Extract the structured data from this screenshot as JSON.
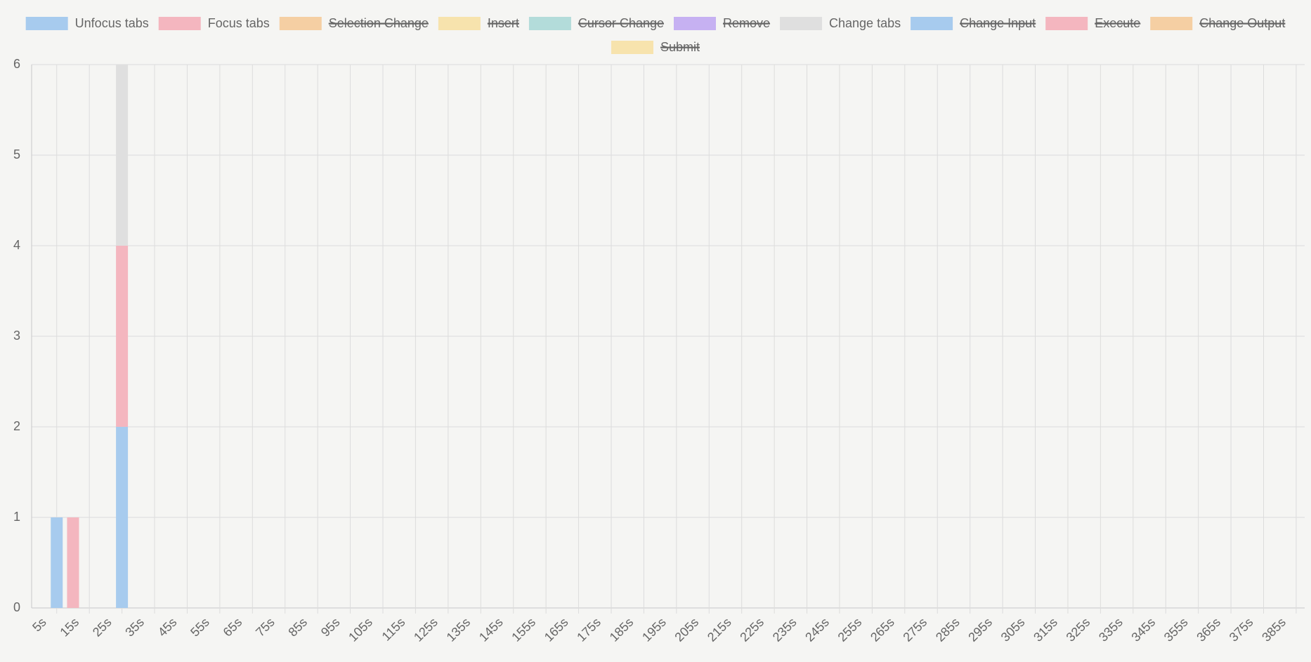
{
  "chart_data": {
    "type": "bar",
    "stacked": true,
    "x": [
      10,
      15,
      30
    ],
    "series": [
      {
        "name": "Unfocus tabs",
        "color": "#a7cbee",
        "hidden": false,
        "values": [
          1,
          null,
          2
        ]
      },
      {
        "name": "Focus tabs",
        "color": "#f4b6bf",
        "hidden": false,
        "values": [
          null,
          1,
          2
        ]
      },
      {
        "name": "Selection Change",
        "color": "#f5cfa3",
        "hidden": true,
        "values": [
          null,
          null,
          null
        ]
      },
      {
        "name": "Insert",
        "color": "#f7e3ad",
        "hidden": true,
        "values": [
          null,
          null,
          null
        ]
      },
      {
        "name": "Cursor Change",
        "color": "#b3dcda",
        "hidden": true,
        "values": [
          null,
          null,
          null
        ]
      },
      {
        "name": "Remove",
        "color": "#c6b1f2",
        "hidden": true,
        "values": [
          null,
          null,
          null
        ]
      },
      {
        "name": "Change tabs",
        "color": "#dfdfdf",
        "hidden": false,
        "values": [
          null,
          null,
          2
        ]
      },
      {
        "name": "Change Input",
        "color": "#a7cbee",
        "hidden": true,
        "values": [
          null,
          null,
          null
        ]
      },
      {
        "name": "Execute",
        "color": "#f4b6bf",
        "hidden": true,
        "values": [
          null,
          null,
          null
        ]
      },
      {
        "name": "Change Output",
        "color": "#f5cfa3",
        "hidden": true,
        "values": [
          null,
          null,
          null
        ]
      },
      {
        "name": "Submit",
        "color": "#f7e3ad",
        "hidden": true,
        "values": [
          null,
          null,
          null
        ]
      }
    ],
    "xlim": [
      2.3,
      392.6
    ],
    "xticks": [
      {
        "value": 5,
        "label": "5s"
      },
      {
        "value": 15,
        "label": "15s"
      },
      {
        "value": 25,
        "label": "25s"
      },
      {
        "value": 35,
        "label": "35s"
      },
      {
        "value": 45,
        "label": "45s"
      },
      {
        "value": 55,
        "label": "55s"
      },
      {
        "value": 65,
        "label": "65s"
      },
      {
        "value": 75,
        "label": "75s"
      },
      {
        "value": 85,
        "label": "85s"
      },
      {
        "value": 95,
        "label": "95s"
      },
      {
        "value": 105,
        "label": "105s"
      },
      {
        "value": 115,
        "label": "115s"
      },
      {
        "value": 125,
        "label": "125s"
      },
      {
        "value": 135,
        "label": "135s"
      },
      {
        "value": 145,
        "label": "145s"
      },
      {
        "value": 155,
        "label": "155s"
      },
      {
        "value": 165,
        "label": "165s"
      },
      {
        "value": 175,
        "label": "175s"
      },
      {
        "value": 185,
        "label": "185s"
      },
      {
        "value": 195,
        "label": "195s"
      },
      {
        "value": 205,
        "label": "205s"
      },
      {
        "value": 215,
        "label": "215s"
      },
      {
        "value": 225,
        "label": "225s"
      },
      {
        "value": 235,
        "label": "235s"
      },
      {
        "value": 245,
        "label": "245s"
      },
      {
        "value": 255,
        "label": "255s"
      },
      {
        "value": 265,
        "label": "265s"
      },
      {
        "value": 275,
        "label": "275s"
      },
      {
        "value": 285,
        "label": "285s"
      },
      {
        "value": 295,
        "label": "295s"
      },
      {
        "value": 305,
        "label": "305s"
      },
      {
        "value": 315,
        "label": "315s"
      },
      {
        "value": 325,
        "label": "325s"
      },
      {
        "value": 335,
        "label": "335s"
      },
      {
        "value": 345,
        "label": "345s"
      },
      {
        "value": 355,
        "label": "355s"
      },
      {
        "value": 365,
        "label": "365s"
      },
      {
        "value": 375,
        "label": "375s"
      },
      {
        "value": 385,
        "label": "385s"
      }
    ],
    "grid_offset": true,
    "ylim": [
      0,
      6
    ],
    "yticks": [
      0,
      1,
      2,
      3,
      4,
      5,
      6
    ],
    "grid": true,
    "legend": "top"
  }
}
